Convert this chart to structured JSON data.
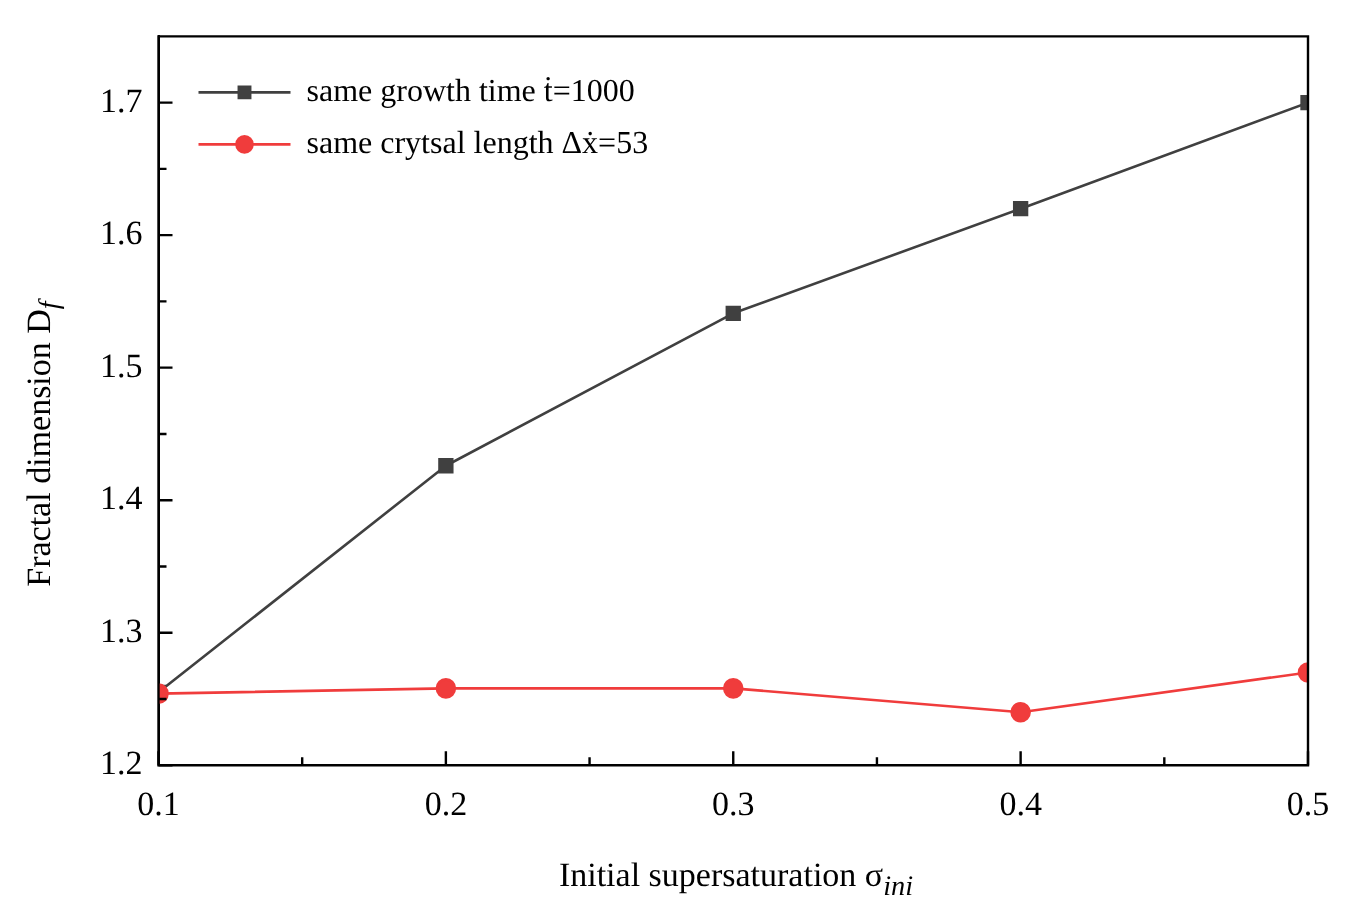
{
  "chart_data": {
    "type": "line",
    "xlabel": "Initial supersaturation σ$_{ini}$",
    "ylabel": "Fractal dimension D$_{f}$",
    "x": [
      0.1,
      0.2,
      0.3,
      0.4,
      0.5
    ],
    "series": [
      {
        "name": "same growth time ṫ=1000",
        "color": "#404040",
        "marker": "square",
        "values": [
          1.255,
          1.426,
          1.541,
          1.62,
          1.7
        ]
      },
      {
        "name": "same crytsal length Δẋ=53",
        "color": "#f03c3c",
        "marker": "circle",
        "values": [
          1.254,
          1.258,
          1.258,
          1.24,
          1.27
        ]
      }
    ],
    "xlim": [
      0.1,
      0.5
    ],
    "xticks": [
      0.1,
      0.2,
      0.3,
      0.4,
      0.5
    ],
    "ylim": [
      1.2,
      1.75
    ],
    "yticks": [
      1.2,
      1.3,
      1.4,
      1.5,
      1.6,
      1.7
    ],
    "grid": false,
    "legend": "top left",
    "line_style": "solid"
  }
}
